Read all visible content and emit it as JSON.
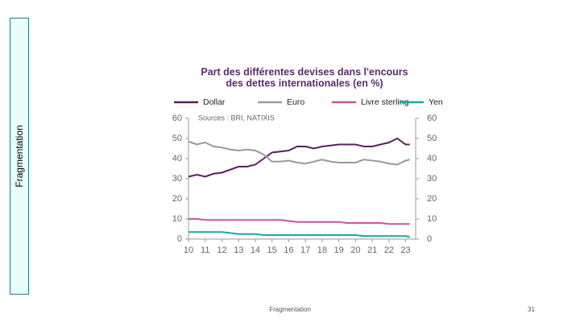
{
  "sidebar": {
    "label": "Fragmentation"
  },
  "footer": {
    "text": "Fragmentation",
    "page": "31"
  },
  "chart_data": {
    "type": "line",
    "title": "Part des différentes devises dans l'encours",
    "subtitle": "des dettes internationales (en %)",
    "annotation": "Sources : BRI, NATIXIS",
    "x": [
      10,
      10.5,
      11,
      11.5,
      12,
      12.5,
      13,
      13.5,
      14,
      14.5,
      15,
      15.5,
      16,
      16.5,
      17,
      17.5,
      18,
      18.5,
      19,
      19.5,
      20,
      20.5,
      21,
      21.5,
      22,
      22.5,
      23,
      23.25
    ],
    "series": [
      {
        "name": "Dollar",
        "color": "#5c1f5f",
        "values": [
          31,
          32,
          31,
          32.5,
          33,
          34.5,
          36,
          36,
          37,
          40,
          43,
          43.5,
          44,
          46,
          46,
          45,
          46,
          46.5,
          47,
          47,
          47,
          46,
          46,
          47,
          48,
          50,
          47,
          47
        ]
      },
      {
        "name": "Euro",
        "color": "#9a9a9a",
        "values": [
          48.5,
          47,
          48,
          46,
          45.5,
          44.5,
          44,
          44.5,
          44,
          42,
          38.5,
          38.5,
          39,
          38,
          37.5,
          38.5,
          39.5,
          38.5,
          38,
          38,
          38,
          39.5,
          39,
          38.5,
          37.5,
          37,
          39,
          39.5
        ]
      },
      {
        "name": "Livre sterling",
        "color": "#c9559a",
        "values": [
          10,
          10,
          9.5,
          9.5,
          9.5,
          9.5,
          9.5,
          9.5,
          9.5,
          9.5,
          9.5,
          9.5,
          9,
          8.5,
          8.5,
          8.5,
          8.5,
          8.5,
          8.5,
          8,
          8,
          8,
          8,
          8,
          7.5,
          7.5,
          7.5,
          7.5
        ]
      },
      {
        "name": "Yen",
        "color": "#1aa6a6",
        "values": [
          3.5,
          3.5,
          3.5,
          3.5,
          3.5,
          3,
          2.5,
          2.5,
          2.5,
          2,
          2,
          2,
          2,
          2,
          2,
          2,
          2,
          2,
          2,
          2,
          2,
          1.5,
          1.5,
          1.5,
          1.5,
          1.5,
          1.5,
          1
        ]
      }
    ],
    "xlim": [
      10,
      23.6
    ],
    "xticks": [
      10,
      11,
      12,
      13,
      14,
      15,
      16,
      17,
      18,
      19,
      20,
      21,
      22,
      23
    ],
    "ylim": [
      0,
      60
    ],
    "yticks": [
      0,
      10,
      20,
      30,
      40,
      50,
      60
    ],
    "y2lim": [
      0,
      60
    ],
    "y2ticks": [
      0,
      10,
      20,
      30,
      40,
      50,
      60
    ],
    "grid": false,
    "legend": "top"
  }
}
